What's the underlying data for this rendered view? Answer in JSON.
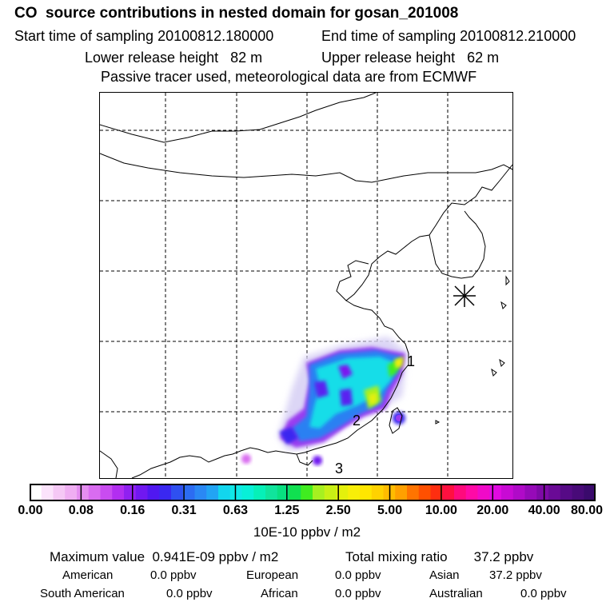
{
  "header": {
    "title": "CO  source contributions in nested domain for gosan_201008",
    "start_time": "Start time of sampling 20100812.180000",
    "end_time": "End time of sampling 20100812.210000",
    "lower_height": "Lower release height   82 m",
    "upper_height": "Upper release height   62 m",
    "tracer_note": "Passive tracer used, meteorological data are from ECMWF"
  },
  "map": {
    "labels": [
      "1",
      "2",
      "3"
    ],
    "station_marker": "receptor-star"
  },
  "colorbar": {
    "ticks": [
      "0.00",
      "0.08",
      "0.16",
      "0.31",
      "0.63",
      "1.25",
      "2.50",
      "5.00",
      "10.00",
      "20.00",
      "40.00",
      "80.00"
    ],
    "colors": [
      "#ffffff",
      "#fbe3fb",
      "#f5c8f5",
      "#efaef2",
      "#e48ef0",
      "#d96cf0",
      "#c94cf0",
      "#b22ef0",
      "#9020f0",
      "#7018f0",
      "#5018f0",
      "#3a28f0",
      "#2f50f0",
      "#2c6cf2",
      "#2a88f4",
      "#22a4f4",
      "#12d6ee",
      "#10e8e8",
      "#08f0d8",
      "#06f0b8",
      "#10e49c",
      "#08e080",
      "#10e050",
      "#40ec20",
      "#a6f020",
      "#c8f016",
      "#e4f00c",
      "#f8ee08",
      "#ffe600",
      "#ffd200",
      "#ffbc00",
      "#ffa000",
      "#ff7400",
      "#ff5000",
      "#ff2e10",
      "#ff1040",
      "#ff0a7c",
      "#ff0aa6",
      "#f00ac8",
      "#e00ae0",
      "#c80ad4",
      "#b00ac8",
      "#960ab8",
      "#7e0aa6",
      "#6a0a96",
      "#560a86",
      "#480a78",
      "#3a0a6c"
    ],
    "unit": "10E-10 ppbv / m2"
  },
  "summary": {
    "max_value": "Maximum value  0.941E-09 ppbv / m2",
    "total_mixing": "Total mixing ratio       37.2 ppbv",
    "regions": [
      {
        "name": "American",
        "value": "0.0 ppbv"
      },
      {
        "name": "European",
        "value": "0.0 ppbv"
      },
      {
        "name": "Asian",
        "value": "37.2 ppbv"
      },
      {
        "name": "South American",
        "value": "0.0 ppbv"
      },
      {
        "name": "African",
        "value": "0.0 ppbv"
      },
      {
        "name": "Australian",
        "value": "0.0 ppbv"
      }
    ]
  }
}
